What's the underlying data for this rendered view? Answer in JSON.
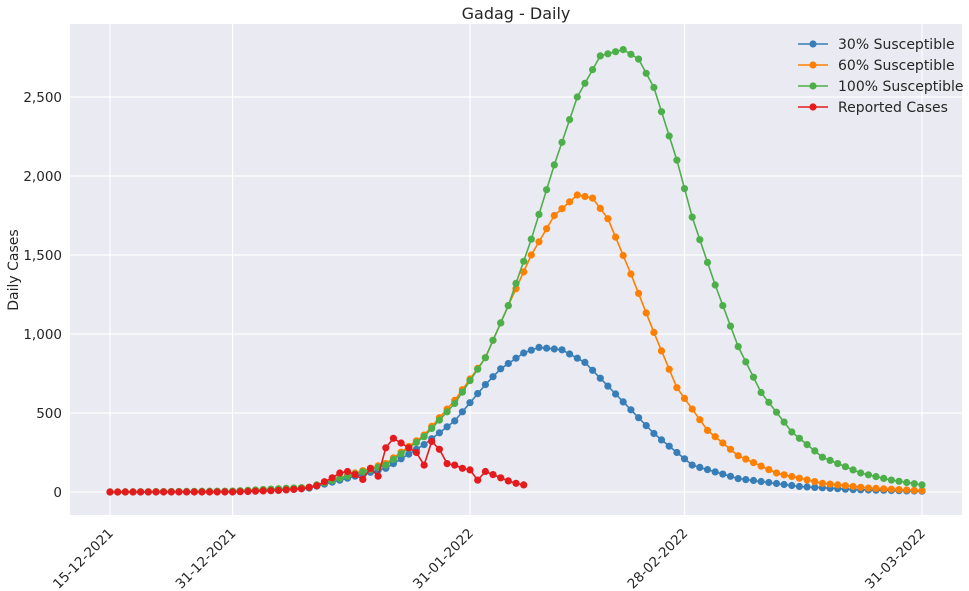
{
  "chart_data": {
    "type": "line",
    "title": "Gadag - Daily",
    "xlabel": "",
    "ylabel": "Daily Cases",
    "x_start": "15-12-2021",
    "x_end": "31-03-2022",
    "x_ticks": [
      "15-12-2021",
      "31-12-2021",
      "31-01-2022",
      "28-02-2022",
      "31-03-2022"
    ],
    "ylim": [
      -140,
      2950
    ],
    "y_ticks": [
      0,
      500,
      1000,
      1500,
      2000,
      2500
    ],
    "y_tick_labels": [
      "0",
      "500",
      "1,000",
      "1,500",
      "2,000",
      "2,500"
    ],
    "grid": true,
    "legend_position": "top-right",
    "series": [
      {
        "name": "30% Susceptible",
        "color": "#377eb8",
        "x": [
          "15-12-2021",
          "31-12-2021",
          "10-01-2022",
          "20-01-2022",
          "25-01-2022",
          "29-01-2022",
          "02-02-2022",
          "04-02-2022",
          "07-02-2022",
          "09-02-2022",
          "12-02-2022",
          "15-02-2022",
          "19-02-2022",
          "24-02-2022",
          "01-03-2022",
          "07-03-2022",
          "15-03-2022",
          "22-03-2022",
          "31-03-2022"
        ],
        "values": [
          0,
          5,
          25,
          150,
          300,
          450,
          680,
          780,
          880,
          915,
          900,
          820,
          620,
          370,
          170,
          85,
          35,
          15,
          5
        ]
      },
      {
        "name": "60% Susceptible",
        "color": "#ff7f00",
        "x": [
          "15-12-2021",
          "31-12-2021",
          "10-01-2022",
          "20-01-2022",
          "25-01-2022",
          "29-01-2022",
          "02-02-2022",
          "05-02-2022",
          "08-02-2022",
          "11-02-2022",
          "14-02-2022",
          "16-02-2022",
          "18-02-2022",
          "21-02-2022",
          "24-02-2022",
          "27-02-2022",
          "03-03-2022",
          "07-03-2022",
          "12-03-2022",
          "18-03-2022",
          "24-03-2022",
          "31-03-2022"
        ],
        "values": [
          0,
          5,
          30,
          180,
          360,
          580,
          850,
          1180,
          1500,
          1750,
          1880,
          1860,
          1730,
          1380,
          1010,
          660,
          390,
          230,
          120,
          55,
          25,
          8
        ]
      },
      {
        "name": "100% Susceptible",
        "color": "#4daf4a",
        "x": [
          "15-12-2021",
          "31-12-2021",
          "10-01-2022",
          "20-01-2022",
          "25-01-2022",
          "29-01-2022",
          "02-02-2022",
          "05-02-2022",
          "08-02-2022",
          "11-02-2022",
          "14-02-2022",
          "17-02-2022",
          "20-02-2022",
          "22-02-2022",
          "24-02-2022",
          "27-02-2022",
          "01-03-2022",
          "04-03-2022",
          "07-03-2022",
          "10-03-2022",
          "14-03-2022",
          "18-03-2022",
          "23-03-2022",
          "27-03-2022",
          "31-03-2022"
        ],
        "values": [
          0,
          5,
          30,
          170,
          350,
          560,
          850,
          1180,
          1600,
          2070,
          2500,
          2760,
          2800,
          2740,
          2560,
          2100,
          1740,
          1310,
          920,
          630,
          380,
          220,
          120,
          75,
          45
        ]
      },
      {
        "name": "Reported Cases",
        "color": "#e41a1c",
        "x": [
          "15-12-2021",
          "20-12-2021",
          "25-12-2021",
          "29-12-2021",
          "31-12-2021",
          "03-01-2022",
          "06-01-2022",
          "09-01-2022",
          "11-01-2022",
          "13-01-2022",
          "14-01-2022",
          "15-01-2022",
          "16-01-2022",
          "17-01-2022",
          "18-01-2022",
          "19-01-2022",
          "20-01-2022",
          "21-01-2022",
          "22-01-2022",
          "23-01-2022",
          "24-01-2022",
          "25-01-2022",
          "26-01-2022",
          "27-01-2022",
          "28-01-2022",
          "29-01-2022",
          "30-01-2022",
          "31-01-2022",
          "01-02-2022",
          "02-02-2022",
          "03-02-2022",
          "04-02-2022",
          "05-02-2022",
          "06-02-2022",
          "07-02-2022"
        ],
        "values": [
          0,
          0,
          0,
          0,
          0,
          5,
          10,
          20,
          40,
          90,
          120,
          130,
          110,
          80,
          150,
          100,
          280,
          340,
          310,
          280,
          250,
          170,
          320,
          270,
          180,
          170,
          150,
          140,
          75,
          130,
          110,
          90,
          70,
          55,
          45
        ]
      }
    ]
  }
}
